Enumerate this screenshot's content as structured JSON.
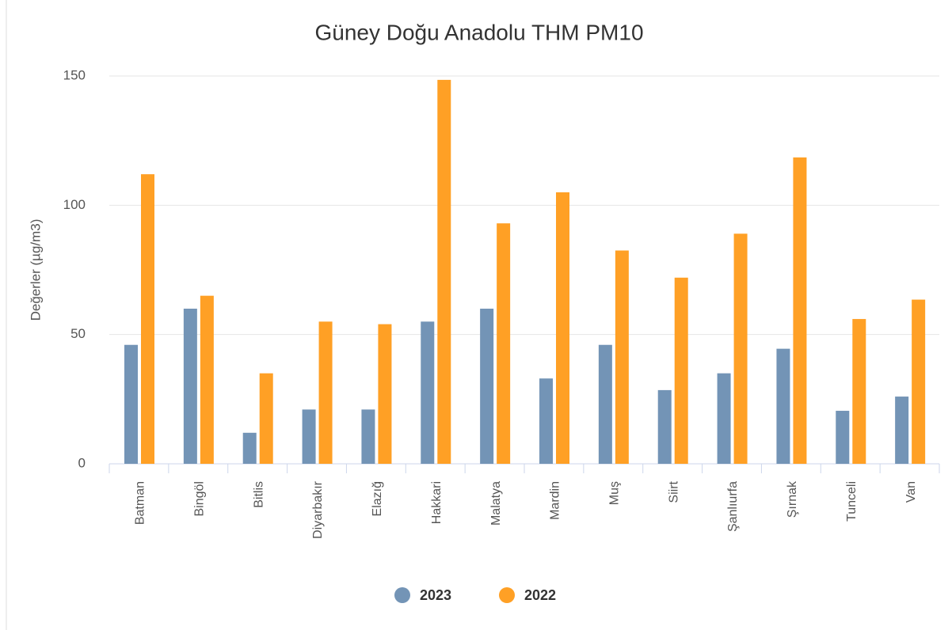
{
  "chart_data": {
    "type": "bar",
    "title": "Güney Doğu Anadolu THM PM10",
    "y_label": "Değerler (µg/m3)",
    "categories": [
      "Batman",
      "Bingöl",
      "Bitlis",
      "Diyarbakır",
      "Elazığ",
      "Hakkari",
      "Malatya",
      "Mardin",
      "Muş",
      "Siirt",
      "Şanlıurfa",
      "Şırnak",
      "Tunceli",
      "Van"
    ],
    "series": [
      {
        "name": "2023",
        "color": "#7394b6",
        "values": [
          46,
          60,
          12,
          21,
          21,
          55,
          60,
          33,
          46,
          28.5,
          35,
          44.5,
          20.5,
          26
        ]
      },
      {
        "name": "2022",
        "color": "#ffa025",
        "values": [
          112,
          65,
          35,
          55,
          54,
          148.5,
          93,
          105,
          82.5,
          72,
          89,
          118.5,
          56,
          63.5
        ]
      }
    ],
    "ylim": [
      0,
      150
    ],
    "yticks": [
      0,
      50,
      100,
      150
    ],
    "grid": true,
    "legend": "bottom"
  }
}
